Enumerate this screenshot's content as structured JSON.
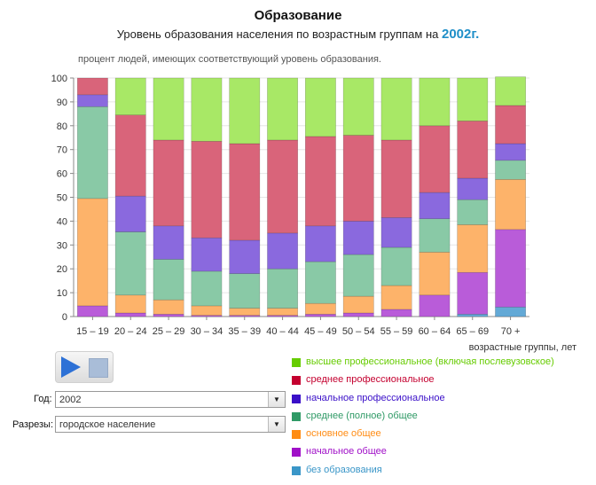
{
  "header": {
    "title": "Образование",
    "subtitle_prefix": "Уровень образования населения по возрастным группам на",
    "subtitle_year": "2002г."
  },
  "note": "процент людей, имеющих соответствующий уровень образования.",
  "controls": {
    "year_label": "Год:",
    "year_value": "2002",
    "slice_label": "Разрезы:",
    "slice_value": "городское население",
    "play_icon": "play-icon",
    "stop_icon": "stop-icon"
  },
  "chart_data": {
    "type": "bar",
    "stacked": true,
    "categories": [
      "15 – 19",
      "20 – 24",
      "25 – 29",
      "30 – 34",
      "35 – 39",
      "40 – 44",
      "45 – 49",
      "50 – 54",
      "55 – 59",
      "60 – 64",
      "65 – 69",
      "70 +"
    ],
    "xlabel": "возрастные группы, лет",
    "ylabel": "",
    "ylim": [
      0,
      100
    ],
    "yticks": [
      0,
      10,
      20,
      30,
      40,
      50,
      60,
      70,
      80,
      90,
      100
    ],
    "grid": true,
    "series": [
      {
        "name": "без образования",
        "color": "#63a9d6",
        "values": [
          0,
          0,
          0,
          0,
          0,
          0,
          0,
          0,
          0,
          0,
          1,
          4
        ]
      },
      {
        "name": "начальное общее",
        "color": "#b95cd9",
        "values": [
          4.5,
          1.5,
          1,
          0.5,
          0.5,
          0.5,
          1,
          1.5,
          3,
          9,
          17.5,
          32.5
        ]
      },
      {
        "name": "основное общее",
        "color": "#fdb36a",
        "values": [
          45,
          7.5,
          6,
          4,
          3,
          3,
          4.5,
          7,
          10,
          18,
          20,
          21
        ]
      },
      {
        "name": "среднее (полное) общее",
        "color": "#89c9a6",
        "values": [
          38.5,
          26.5,
          17,
          14.5,
          14.5,
          16.5,
          17.5,
          17.5,
          16,
          14,
          10.5,
          8
        ]
      },
      {
        "name": "начальное профессиональное",
        "color": "#8a69de",
        "values": [
          5,
          15,
          14,
          14,
          14,
          15,
          15,
          14,
          12.5,
          11,
          9,
          7
        ]
      },
      {
        "name": "среднее профессиональное",
        "color": "#d9647a",
        "values": [
          7,
          34,
          36,
          40.5,
          40.5,
          39,
          37.5,
          36,
          32.5,
          28,
          24,
          16
        ]
      },
      {
        "name": "высшее профессиональное  (включая послевузовское)",
        "color": "#a8e866",
        "values": [
          0,
          15.5,
          26,
          26.5,
          27.5,
          26,
          24.5,
          24,
          26,
          20,
          18,
          12
        ]
      }
    ]
  },
  "legend_items": [
    {
      "label": "высшее профессиональное  (включая послевузовское)",
      "swatch": "#66cc00",
      "text_color": "#66cc00"
    },
    {
      "label": "среднее профессиональное",
      "swatch": "#c4002f",
      "text_color": "#c4002f"
    },
    {
      "label": "начальное профессиональное",
      "swatch": "#3a0fc8",
      "text_color": "#3a0fc8"
    },
    {
      "label": "среднее (полное) общее",
      "swatch": "#2f9a66",
      "text_color": "#2f9a66"
    },
    {
      "label": "основное общее",
      "swatch": "#ff8c14",
      "text_color": "#ff8c14"
    },
    {
      "label": "начальное общее",
      "swatch": "#a010c8",
      "text_color": "#a010c8"
    },
    {
      "label": "без образования",
      "swatch": "#3a96c8",
      "text_color": "#3a96c8"
    }
  ]
}
